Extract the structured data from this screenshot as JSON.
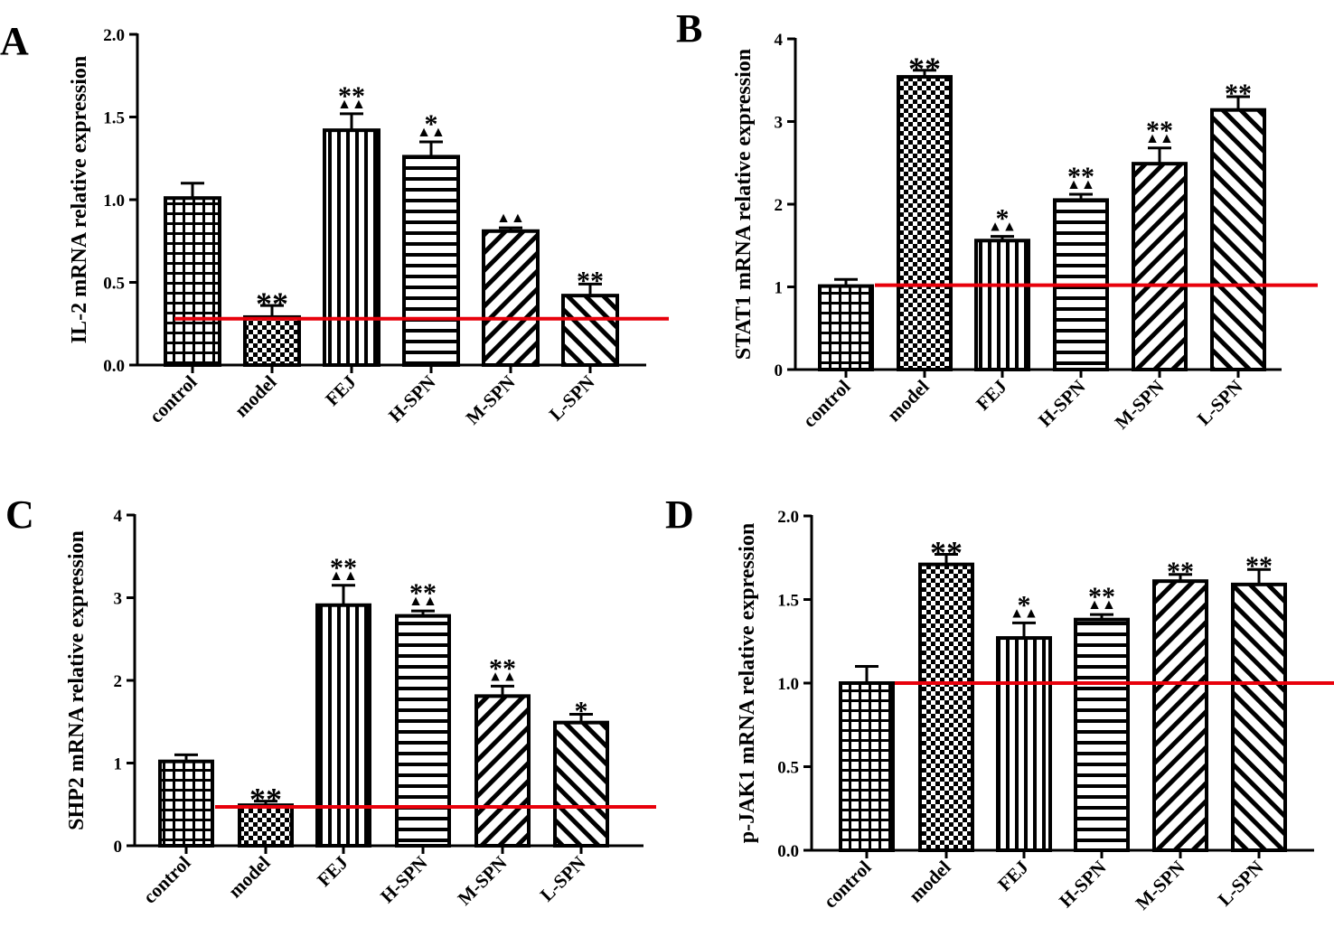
{
  "chart_data": [
    {
      "type": "bar",
      "panel": "A",
      "ylabel": "IL-2 mRNA relative expression",
      "ylim": [
        0,
        2.0
      ],
      "ytick_labels": [
        "0.0",
        "0.5",
        "1.0",
        "1.5",
        "2.0"
      ],
      "categories": [
        "control",
        "model",
        "FEJ",
        "H-SPN",
        "M-SPN",
        "L-SPN"
      ],
      "values": [
        1.01,
        0.29,
        1.42,
        1.26,
        0.81,
        0.42
      ],
      "errors": [
        0.09,
        0.07,
        0.1,
        0.09,
        0.02,
        0.07
      ],
      "star_marks": [
        "",
        "**",
        "**",
        "*",
        "",
        "**"
      ],
      "triangle_marks": [
        "",
        "",
        "▲▲",
        "▲▲",
        "▲▲",
        ""
      ],
      "reference_line": 0.28,
      "reference_color": "#e8000b"
    },
    {
      "type": "bar",
      "panel": "B",
      "ylabel": "STAT1 mRNA relative expression",
      "ylim": [
        0,
        4
      ],
      "ytick_labels": [
        "0",
        "1",
        "2",
        "3",
        "4"
      ],
      "categories": [
        "control",
        "model",
        "FEJ",
        "H-SPN",
        "M-SPN",
        "L-SPN"
      ],
      "values": [
        1.01,
        3.54,
        1.56,
        2.05,
        2.49,
        3.14
      ],
      "errors": [
        0.08,
        0.08,
        0.05,
        0.07,
        0.19,
        0.16
      ],
      "star_marks": [
        "",
        "**",
        "*",
        "**",
        "**",
        "**"
      ],
      "triangle_marks": [
        "",
        "",
        "▲▲",
        "▲▲",
        "▲▲",
        ""
      ],
      "reference_line": 1.02,
      "reference_color": "#e8000b"
    },
    {
      "type": "bar",
      "panel": "C",
      "ylabel": "SHP2 mRNA relative expression",
      "ylim": [
        0,
        4
      ],
      "ytick_labels": [
        "0",
        "1",
        "2",
        "3",
        "4"
      ],
      "categories": [
        "control",
        "model",
        "FEJ",
        "H-SPN",
        "M-SPN",
        "L-SPN"
      ],
      "values": [
        1.02,
        0.49,
        2.91,
        2.78,
        1.81,
        1.49
      ],
      "errors": [
        0.08,
        0.05,
        0.24,
        0.06,
        0.12,
        0.1
      ],
      "star_marks": [
        "",
        "**",
        "**",
        "**",
        "**",
        "*"
      ],
      "triangle_marks": [
        "",
        "",
        "▲▲",
        "▲▲",
        "▲▲",
        ""
      ],
      "reference_line": 0.47,
      "reference_color": "#e8000b"
    },
    {
      "type": "bar",
      "panel": "D",
      "ylabel": "p-JAK1 mRNA relative expression",
      "ylim": [
        0,
        2.0
      ],
      "ytick_labels": [
        "0.0",
        "0.5",
        "1.0",
        "1.5",
        "2.0"
      ],
      "categories": [
        "control",
        "model",
        "FEJ",
        "H-SPN",
        "M-SPN",
        "L-SPN"
      ],
      "values": [
        1.0,
        1.71,
        1.27,
        1.38,
        1.61,
        1.59
      ],
      "errors": [
        0.1,
        0.06,
        0.09,
        0.03,
        0.04,
        0.09
      ],
      "star_marks": [
        "",
        "**",
        "*",
        "**",
        "**",
        "**"
      ],
      "triangle_marks": [
        "",
        "",
        "▲▲",
        "▲▲",
        "",
        ""
      ],
      "reference_line": 1.0,
      "reference_color": "#e8000b"
    }
  ]
}
